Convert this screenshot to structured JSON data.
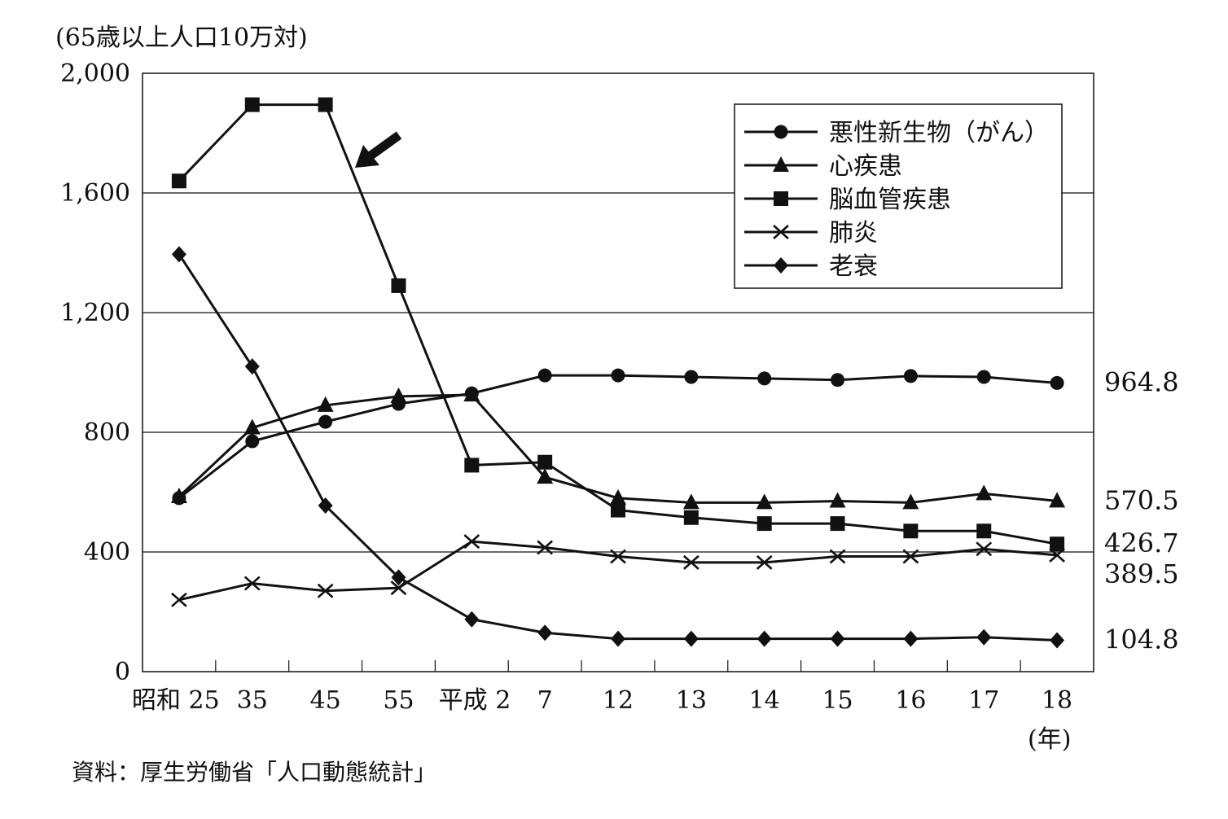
{
  "chart_data": {
    "type": "line",
    "unit_label": "(65歳以上人口10万対)",
    "x_unit_label": "(年)",
    "source": "資料：厚生労働省「人口動態統計」",
    "categories": [
      "昭和 25",
      "35",
      "45",
      "55",
      "平成 2",
      "7",
      "12",
      "13",
      "14",
      "15",
      "16",
      "17",
      "18"
    ],
    "ylim": [
      0,
      2000
    ],
    "yticks": [
      0,
      400,
      800,
      1200,
      1600,
      2000
    ],
    "ytick_labels": [
      "0",
      "400",
      "800",
      "1,200",
      "1,600",
      "2,000"
    ],
    "grid": "horizontal",
    "legend_position": "top-right",
    "arrow_annotation": "points to 脳血管疾患 decline",
    "series": [
      {
        "name": "悪性新生物（がん）",
        "marker": "circle",
        "values": [
          580,
          770,
          835,
          895,
          930,
          990,
          990,
          985,
          980,
          975,
          988,
          985,
          964.8
        ]
      },
      {
        "name": "心疾患",
        "marker": "triangle",
        "values": [
          585,
          815,
          890,
          920,
          925,
          650,
          580,
          565,
          565,
          570,
          565,
          595,
          570.5
        ]
      },
      {
        "name": "脳血管疾患",
        "marker": "square",
        "values": [
          1640,
          1895,
          1895,
          1290,
          690,
          700,
          540,
          515,
          495,
          495,
          470,
          470,
          426.7
        ]
      },
      {
        "name": "肺炎",
        "marker": "x",
        "values": [
          240,
          295,
          270,
          280,
          435,
          415,
          385,
          365,
          365,
          385,
          385,
          410,
          389.5
        ]
      },
      {
        "name": "老衰",
        "marker": "diamond",
        "values": [
          1395,
          1020,
          555,
          315,
          175,
          130,
          110,
          110,
          110,
          110,
          110,
          115,
          104.8
        ]
      }
    ],
    "end_labels": [
      "964.8",
      "570.5",
      "426.7",
      "389.5",
      "104.8"
    ]
  }
}
